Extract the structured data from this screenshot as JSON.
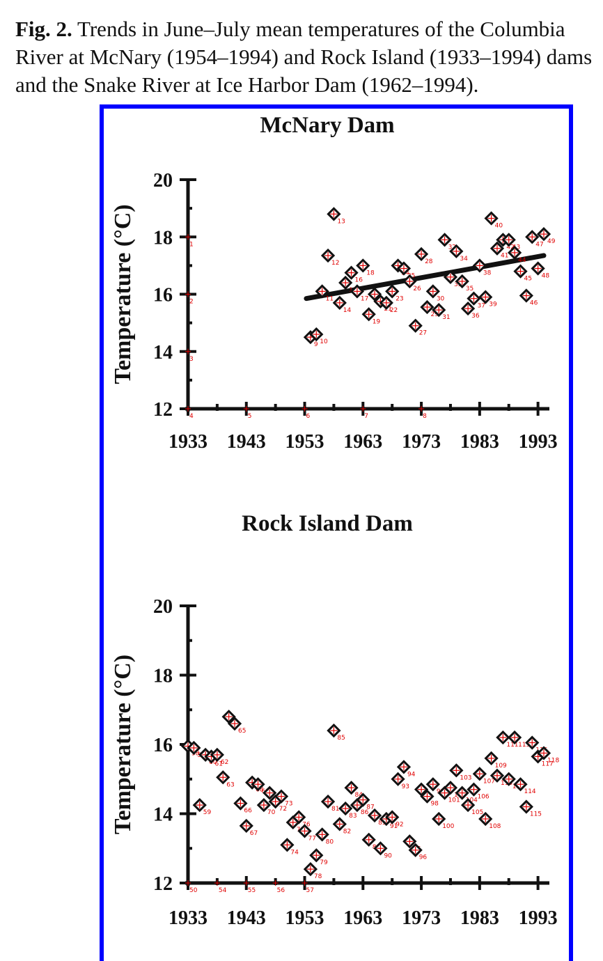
{
  "caption": {
    "bold": "Fig. 2.",
    "text": "Trends in June–July mean temperatures of the Columbia River at McNary (1954–1994) and Rock Island (1933–1994) dams and the Snake River at Ice Harbor Dam (1962–1994)."
  },
  "colors": {
    "frame": "#0000ff",
    "marker": "#111111",
    "cross": "#e00000"
  },
  "chart_data": [
    {
      "type": "scatter",
      "title": "McNary Dam",
      "xlabel": "",
      "ylabel": "Temperature (°C)",
      "xlim": [
        1933,
        1994
      ],
      "ylim": [
        12,
        20
      ],
      "xticks": [
        "1933",
        "1943",
        "1953",
        "1963",
        "1973",
        "1983",
        "1993"
      ],
      "yticks": [
        "12",
        "14",
        "16",
        "18",
        "20"
      ],
      "grid": false,
      "x": [
        1954,
        1955,
        1956,
        1957,
        1958,
        1959,
        1960,
        1961,
        1962,
        1963,
        1964,
        1965,
        1966,
        1967,
        1968,
        1969,
        1970,
        1971,
        1972,
        1973,
        1974,
        1975,
        1976,
        1977,
        1978,
        1979,
        1980,
        1981,
        1982,
        1983,
        1984,
        1985,
        1986,
        1987,
        1988,
        1989,
        1990,
        1991,
        1992,
        1993,
        1994
      ],
      "y": [
        14.5,
        14.6,
        16.1,
        17.35,
        18.8,
        15.7,
        16.4,
        16.75,
        16.1,
        17.0,
        15.3,
        16.0,
        15.75,
        15.7,
        16.1,
        17.0,
        16.9,
        16.45,
        14.9,
        17.4,
        15.55,
        16.1,
        15.45,
        17.9,
        16.6,
        17.5,
        16.45,
        15.5,
        15.85,
        17.0,
        15.9,
        18.65,
        17.6,
        17.9,
        17.9,
        17.45,
        16.8,
        15.95,
        18.0,
        16.9,
        18.1
      ],
      "point_labels": [
        "9",
        "10",
        "11",
        "12",
        "13",
        "14",
        "15",
        "16",
        "17",
        "18",
        "19",
        "20",
        "21",
        "22",
        "23",
        "24",
        "25",
        "26",
        "27",
        "28",
        "29",
        "30",
        "31",
        "32",
        "33",
        "34",
        "35",
        "36",
        "37",
        "38",
        "39",
        "40",
        "41",
        "42",
        "43",
        "44",
        "45",
        "46",
        "47",
        "48",
        "49"
      ],
      "axis_labels": [
        "1",
        "2",
        "3",
        "4",
        "5",
        "6",
        "7",
        "8"
      ],
      "trend": {
        "x": [
          1954,
          1994
        ],
        "y": [
          15.85,
          17.35
        ]
      }
    },
    {
      "type": "scatter",
      "title": "Rock Island Dam",
      "xlabel": "",
      "ylabel": "Temperature (°C)",
      "xlim": [
        1933,
        1994
      ],
      "ylim": [
        12,
        20
      ],
      "xticks": [
        "1933",
        "1943",
        "1953",
        "1963",
        "1973",
        "1983",
        "1993"
      ],
      "yticks": [
        "12",
        "14",
        "16",
        "18",
        "20"
      ],
      "grid": false,
      "x": [
        1933,
        1934,
        1935,
        1936,
        1937,
        1938,
        1939,
        1940,
        1941,
        1942,
        1943,
        1944,
        1945,
        1946,
        1947,
        1948,
        1949,
        1950,
        1951,
        1952,
        1953,
        1954,
        1955,
        1956,
        1957,
        1958,
        1959,
        1960,
        1961,
        1962,
        1963,
        1964,
        1965,
        1966,
        1967,
        1968,
        1969,
        1970,
        1971,
        1972,
        1973,
        1974,
        1975,
        1976,
        1977,
        1978,
        1979,
        1980,
        1981,
        1982,
        1983,
        1984,
        1985,
        1986,
        1987,
        1988,
        1989,
        1990,
        1991,
        1992,
        1993,
        1994
      ],
      "y": [
        15.95,
        15.9,
        14.25,
        15.7,
        15.65,
        15.7,
        15.05,
        16.8,
        16.6,
        14.3,
        13.65,
        14.9,
        14.85,
        14.25,
        14.6,
        14.35,
        14.5,
        13.1,
        13.75,
        13.9,
        13.5,
        12.4,
        12.8,
        13.4,
        14.35,
        16.4,
        13.7,
        14.15,
        14.75,
        14.25,
        14.4,
        13.25,
        13.95,
        13.0,
        13.85,
        13.9,
        15.0,
        15.35,
        13.2,
        12.95,
        14.7,
        14.5,
        14.85,
        13.85,
        14.6,
        14.75,
        15.25,
        14.6,
        14.25,
        14.7,
        15.15,
        13.85,
        15.6,
        15.1,
        16.2,
        15.0,
        16.2,
        14.85,
        14.2,
        16.05,
        15.65,
        15.75
      ],
      "point_labels": [
        "58",
        "51",
        "59",
        "60",
        "61",
        "62",
        "63",
        "64",
        "65",
        "66",
        "67",
        "68",
        "69",
        "70",
        "71",
        "72",
        "73",
        "74",
        "75",
        "76",
        "77",
        "78",
        "79",
        "80",
        "81",
        "85",
        "82",
        "83",
        "84",
        "86",
        "87",
        "88",
        "89",
        "90",
        "91",
        "92",
        "93",
        "94",
        "95",
        "96",
        "97",
        "98",
        "99",
        "100",
        "101",
        "102",
        "103",
        "104",
        "105",
        "106",
        "107",
        "108",
        "109",
        "110",
        "111",
        "112",
        "113",
        "114",
        "115",
        "116",
        "117",
        "118"
      ],
      "axis_labels": [
        "50",
        "54",
        "55",
        "56",
        "57"
      ]
    }
  ]
}
